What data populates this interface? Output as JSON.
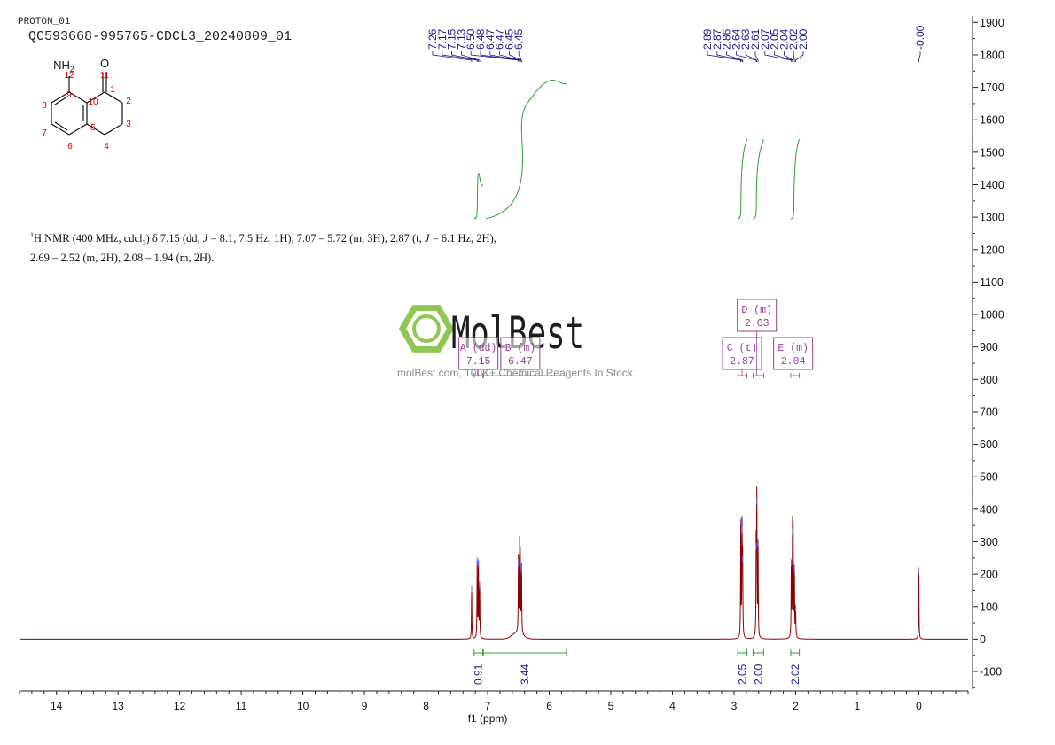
{
  "header": {
    "experiment": "PROTON_01",
    "sample": "QC593668-995765-CDCL3_20240809_01"
  },
  "description": {
    "nucleus_sup": "1",
    "part1": "H NMR (400 MHz, cdcl",
    "sub3": "3",
    "part2": ") δ 7.15 (dd, ",
    "j1": "J",
    "part3": " = 8.1, 7.5 Hz, 1H), 7.07 – 5.72 (m, 3H), 2.87 (t, ",
    "j2": "J",
    "part4": " = 6.1 Hz, 2H),",
    "line2": "2.69 – 2.52 (m, 2H), 2.08 – 1.94 (m, 2H)."
  },
  "watermark": {
    "brand": "MolBest",
    "tagline": "molBest.com, 100K+ Chemical Reagents In Stock."
  },
  "structure": {
    "atoms": [
      "NH2",
      "O",
      "12",
      "11",
      "9",
      "1",
      "8",
      "10",
      "2",
      "7",
      "5",
      "3",
      "6",
      "4"
    ]
  },
  "chart_data": {
    "type": "line",
    "title": "",
    "xlabel": "f1 (ppm)",
    "ylabel": "",
    "xlim": [
      14.6,
      -0.8
    ],
    "ylim": [
      -160,
      1920
    ],
    "x_ticks": [
      14,
      13,
      12,
      11,
      10,
      9,
      8,
      7,
      6,
      5,
      4,
      3,
      2,
      1,
      0
    ],
    "y_ticks": [
      1900,
      1800,
      1700,
      1600,
      1500,
      1400,
      1300,
      1200,
      1100,
      1000,
      900,
      800,
      700,
      600,
      500,
      400,
      300,
      200,
      100,
      0,
      -100
    ],
    "spectrum_color": "#8b0000",
    "integral_color": "#2ca02c",
    "annotation_color": "#1a1a8c",
    "multiplet_color": "#9b3c9b",
    "peaks": [
      {
        "ppm": 7.26,
        "height": 150
      },
      {
        "ppm": 7.17,
        "height": 235
      },
      {
        "ppm": 7.15,
        "height": 230
      },
      {
        "ppm": 7.13,
        "height": 160
      },
      {
        "ppm": 6.5,
        "height": 230
      },
      {
        "ppm": 6.48,
        "height": 265
      },
      {
        "ppm": 6.47,
        "height": 220
      },
      {
        "ppm": 6.45,
        "height": 210
      },
      {
        "ppm": 2.89,
        "height": 355
      },
      {
        "ppm": 2.87,
        "height": 330
      },
      {
        "ppm": 2.86,
        "height": 240
      },
      {
        "ppm": 2.64,
        "height": 280
      },
      {
        "ppm": 2.63,
        "height": 420
      },
      {
        "ppm": 2.61,
        "height": 290
      },
      {
        "ppm": 2.07,
        "height": 230
      },
      {
        "ppm": 2.05,
        "height": 325
      },
      {
        "ppm": 2.04,
        "height": 310
      },
      {
        "ppm": 2.02,
        "height": 210
      },
      {
        "ppm": 2.0,
        "height": 90
      },
      {
        "ppm": 0.0,
        "height": 205
      }
    ],
    "peak_labels": [
      {
        "text": "7.26",
        "ppm": 7.26
      },
      {
        "text": "7.17",
        "ppm": 7.17
      },
      {
        "text": "7.15",
        "ppm": 7.15
      },
      {
        "text": "7.13",
        "ppm": 7.13
      },
      {
        "text": "6.50",
        "ppm": 6.5
      },
      {
        "text": "6.48",
        "ppm": 6.48
      },
      {
        "text": "6.47",
        "ppm": 6.47
      },
      {
        "text": "6.47",
        "ppm": 6.47
      },
      {
        "text": "6.45",
        "ppm": 6.45
      },
      {
        "text": "6.45",
        "ppm": 6.45
      },
      {
        "text": "2.89",
        "ppm": 2.89
      },
      {
        "text": "2.87",
        "ppm": 2.87
      },
      {
        "text": "2.86",
        "ppm": 2.86
      },
      {
        "text": "2.64",
        "ppm": 2.64
      },
      {
        "text": "2.63",
        "ppm": 2.63
      },
      {
        "text": "2.61",
        "ppm": 2.61
      },
      {
        "text": "2.07",
        "ppm": 2.07
      },
      {
        "text": "2.05",
        "ppm": 2.05
      },
      {
        "text": "2.04",
        "ppm": 2.04
      },
      {
        "text": "2.02",
        "ppm": 2.02
      },
      {
        "text": "2.00",
        "ppm": 2.0
      },
      {
        "text": "-0.00",
        "ppm": 0.0
      }
    ],
    "integrals": [
      {
        "from": 7.22,
        "to": 7.08,
        "value": "0.91",
        "start": 1295,
        "end": 1400
      },
      {
        "from": 7.07,
        "to": 5.72,
        "value": "3.44",
        "start": 1295,
        "end": 1710
      },
      {
        "from": 2.94,
        "to": 2.79,
        "value": "2.05",
        "start": 1295,
        "end": 1540
      },
      {
        "from": 2.69,
        "to": 2.52,
        "value": "2.00",
        "start": 1295,
        "end": 1540
      },
      {
        "from": 2.08,
        "to": 1.94,
        "value": "2.02",
        "start": 1295,
        "end": 1540
      }
    ],
    "multiplets": [
      {
        "label": "A (dd)",
        "shift": "7.15",
        "ppm": 7.15,
        "level": 0
      },
      {
        "label": "B (m)",
        "shift": "6.47",
        "ppm": 6.47,
        "level": 0
      },
      {
        "label": "C (t)",
        "shift": "2.87",
        "ppm": 2.87,
        "level": 0
      },
      {
        "label": "D (m)",
        "shift": "2.63",
        "ppm": 2.63,
        "level": 1
      },
      {
        "label": "E (m)",
        "shift": "2.04",
        "ppm": 2.04,
        "level": 0
      }
    ]
  }
}
